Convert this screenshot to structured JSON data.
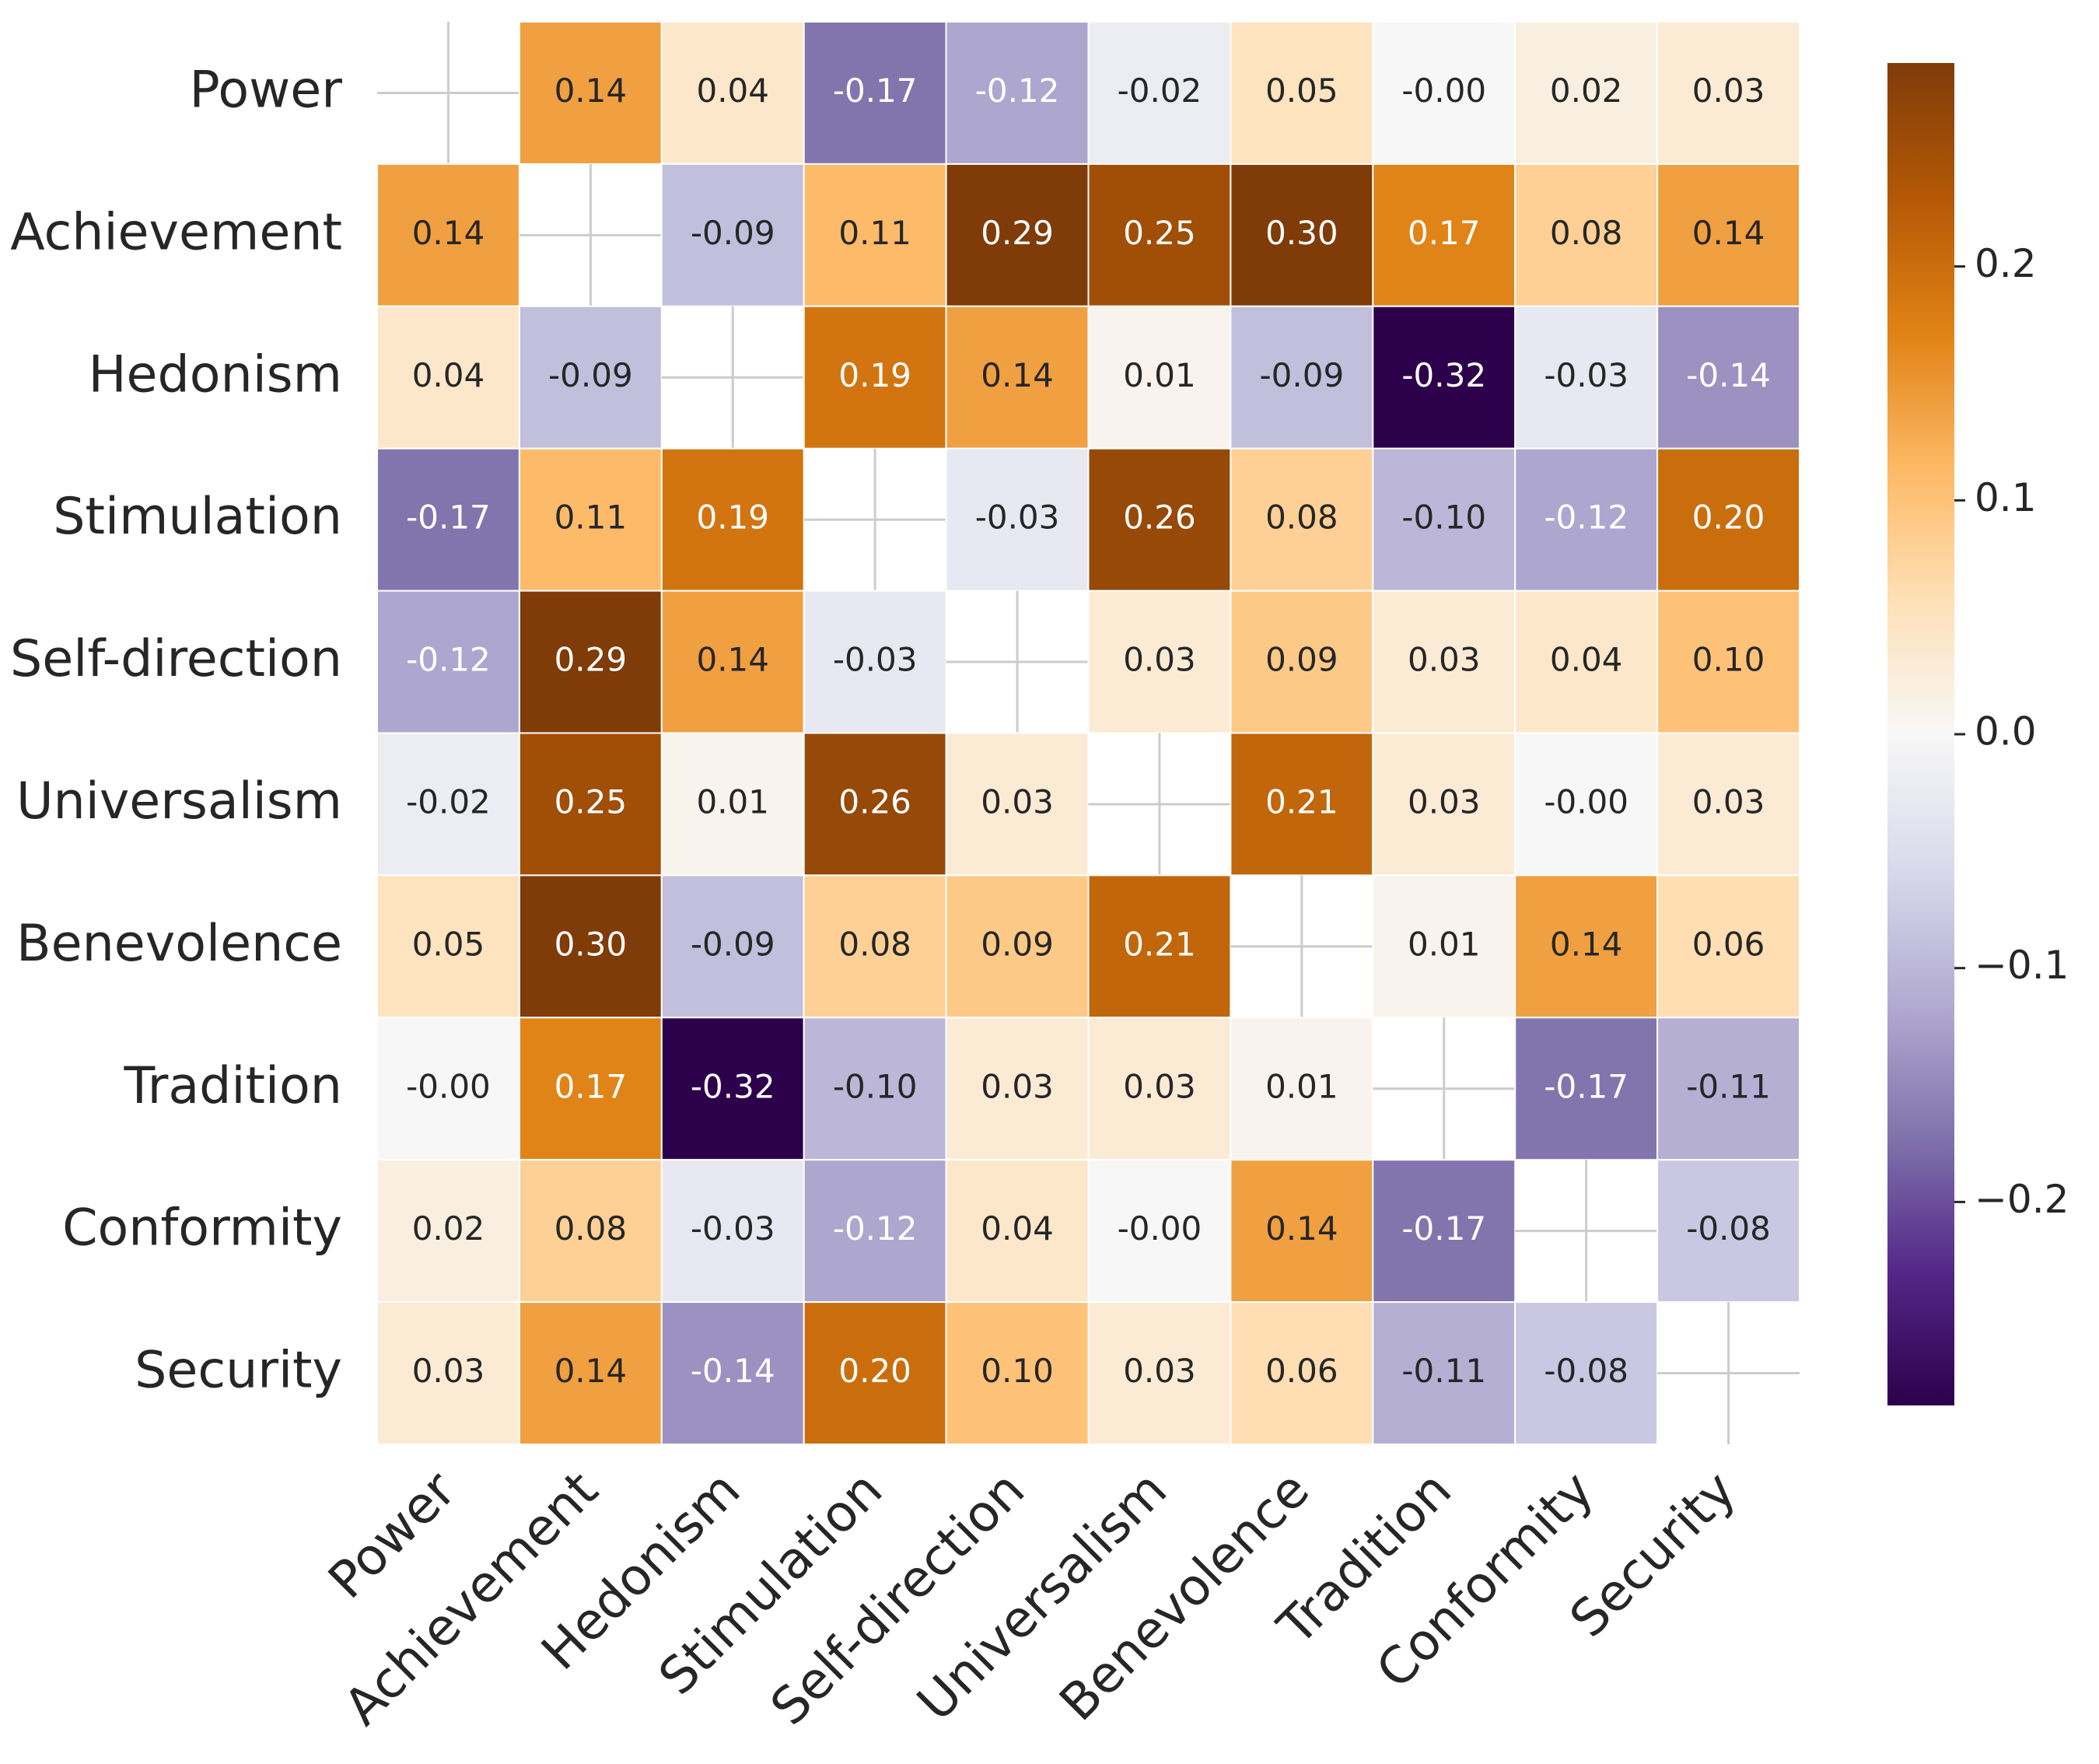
{
  "chart_data": {
    "type": "heatmap",
    "rows": [
      "Power",
      "Achievement",
      "Hedonism",
      "Stimulation",
      "Self-direction",
      "Universalism",
      "Benevolence",
      "Tradition",
      "Conformity",
      "Security"
    ],
    "categories": [
      "Power",
      "Achievement",
      "Hedonism",
      "Stimulation",
      "Self-direction",
      "Universalism",
      "Benevolence",
      "Tradition",
      "Conformity",
      "Security"
    ],
    "values": [
      [
        null,
        0.14,
        0.04,
        -0.17,
        -0.12,
        -0.02,
        0.05,
        0,
        0.02,
        0.03
      ],
      [
        0.14,
        null,
        -0.09,
        0.11,
        0.29,
        0.25,
        0.3,
        0.17,
        0.08,
        0.14
      ],
      [
        0.04,
        -0.09,
        null,
        0.19,
        0.14,
        0.01,
        -0.09,
        -0.32,
        -0.03,
        -0.14
      ],
      [
        -0.17,
        0.11,
        0.19,
        null,
        -0.03,
        0.26,
        0.08,
        -0.1,
        -0.12,
        0.2
      ],
      [
        -0.12,
        0.29,
        0.14,
        -0.03,
        null,
        0.03,
        0.09,
        0.03,
        0.04,
        0.1
      ],
      [
        -0.02,
        0.25,
        0.01,
        0.26,
        0.03,
        null,
        0.21,
        0.03,
        0,
        0.03
      ],
      [
        0.05,
        0.3,
        -0.09,
        0.08,
        0.09,
        0.21,
        null,
        0.01,
        0.14,
        0.06
      ],
      [
        0,
        0.17,
        -0.32,
        -0.1,
        0.03,
        0.03,
        0.01,
        null,
        -0.17,
        -0.11
      ],
      [
        0.02,
        0.08,
        -0.03,
        -0.12,
        0.04,
        0,
        0.14,
        -0.17,
        null,
        -0.08
      ],
      [
        0.03,
        0.14,
        -0.14,
        0.2,
        0.1,
        0.03,
        0.06,
        -0.11,
        -0.08,
        null
      ]
    ],
    "value_labels": [
      [
        null,
        "0.14",
        "0.04",
        "-0.17",
        "-0.12",
        "-0.02",
        "0.05",
        "-0.00",
        "0.02",
        "0.03"
      ],
      [
        "0.14",
        null,
        "-0.09",
        "0.11",
        "0.29",
        "0.25",
        "0.30",
        "0.17",
        "0.08",
        "0.14"
      ],
      [
        "0.04",
        "-0.09",
        null,
        "0.19",
        "0.14",
        "0.01",
        "-0.09",
        "-0.32",
        "-0.03",
        "-0.14"
      ],
      [
        "-0.17",
        "0.11",
        "0.19",
        null,
        "-0.03",
        "0.26",
        "0.08",
        "-0.10",
        "-0.12",
        "0.20"
      ],
      [
        "-0.12",
        "0.29",
        "0.14",
        "-0.03",
        null,
        "0.03",
        "0.09",
        "0.03",
        "0.04",
        "0.10"
      ],
      [
        "-0.02",
        "0.25",
        "0.01",
        "0.26",
        "0.03",
        null,
        "0.21",
        "0.03",
        "-0.00",
        "0.03"
      ],
      [
        "0.05",
        "0.30",
        "-0.09",
        "0.08",
        "0.09",
        "0.21",
        null,
        "0.01",
        "0.14",
        "0.06"
      ],
      [
        "-0.00",
        "0.17",
        "-0.32",
        "-0.10",
        "0.03",
        "0.03",
        "0.01",
        null,
        "-0.17",
        "-0.11"
      ],
      [
        "0.02",
        "0.08",
        "-0.03",
        "-0.12",
        "0.04",
        "-0.00",
        "0.14",
        "-0.17",
        null,
        "-0.08"
      ],
      [
        "0.03",
        "0.14",
        "-0.14",
        "0.20",
        "0.10",
        "0.03",
        "0.06",
        "-0.11",
        "-0.08",
        null
      ]
    ],
    "clim": [
      -0.287,
      0.287
    ],
    "cticks": [
      {
        "value": -0.2,
        "label": "−0.2"
      },
      {
        "value": -0.1,
        "label": "−0.1"
      },
      {
        "value": 0,
        "label": "0.0"
      },
      0.1,
      0.2
    ],
    "colormap": [
      "#2d004b",
      "#542788",
      "#8073ac",
      "#b2abd2",
      "#d8daeb",
      "#f7f7f7",
      "#fee0b6",
      "#fdb863",
      "#e08214",
      "#b35806",
      "#7f3b08"
    ]
  }
}
